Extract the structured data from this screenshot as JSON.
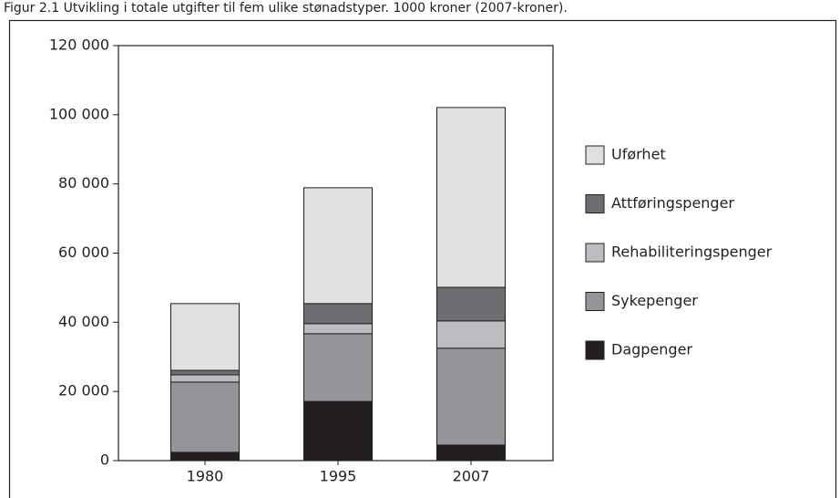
{
  "chart_data": {
    "type": "stacked_bar",
    "title": "Figur 2.1 Utvikling i totale utgifter til fem ulike stønadstyper. 1000 kroner (2007-kroner).",
    "categories": [
      "1980",
      "1995",
      "2007"
    ],
    "series": [
      {
        "name": "Dagpenger",
        "color": "#231f20",
        "values": [
          2400,
          17100,
          4500
        ]
      },
      {
        "name": "Sykepenger",
        "color": "#939598",
        "values": [
          20300,
          19600,
          28000
        ]
      },
      {
        "name": "Rehabiliteringspenger",
        "color": "#bcbdc0",
        "values": [
          2100,
          2900,
          7900
        ]
      },
      {
        "name": "Attføringspenger",
        "color": "#6d6e71",
        "values": [
          1300,
          5800,
          9700
        ]
      },
      {
        "name": "Uførhet",
        "color": "#e0e0e1",
        "values": [
          19300,
          33500,
          52000
        ]
      }
    ],
    "ylim": [
      0,
      120000
    ],
    "yticks": [
      0,
      {
        "value": 20000,
        "label": "20 000"
      },
      {
        "value": 40000,
        "label": "40 000"
      },
      {
        "value": 60000,
        "label": "60 000"
      },
      {
        "value": 80000,
        "label": "80 000"
      },
      {
        "value": 100000,
        "label": "100 000"
      },
      {
        "value": 120000,
        "label": "120 000"
      }
    ],
    "legend": "right"
  }
}
